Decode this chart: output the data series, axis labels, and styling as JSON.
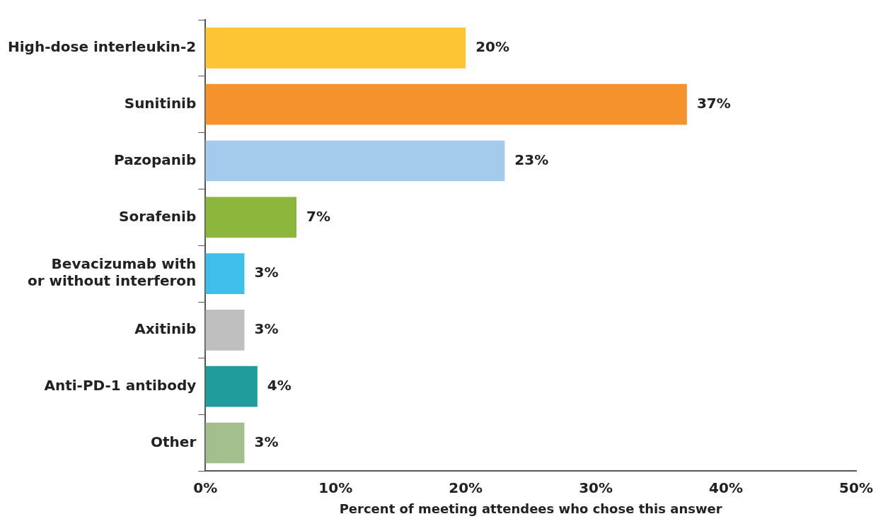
{
  "chart_data": {
    "type": "bar",
    "orientation": "horizontal",
    "xlabel": "Percent of meeting attendees who chose this answer",
    "categories": [
      "High-dose interleukin-2",
      "Sunitinib",
      "Pazopanib",
      "Sorafenib",
      "Bevacizumab with\nor without interferon",
      "Axitinib",
      "Anti-PD-1 antibody",
      "Other"
    ],
    "values": [
      20,
      37,
      23,
      7,
      3,
      3,
      4,
      3
    ],
    "colors": [
      "#fdc533",
      "#f5922b",
      "#a5cbec",
      "#8db63c",
      "#3ec0ea",
      "#bfbfbf",
      "#1f9c9c",
      "#a3bf8d"
    ],
    "value_labels": [
      "20%",
      "37%",
      "23%",
      "7%",
      "3%",
      "3%",
      "4%",
      "3%"
    ],
    "xlim": [
      0,
      50
    ],
    "xticks": [
      {
        "value": 0,
        "label": "0%"
      },
      {
        "value": 10,
        "label": "10%"
      },
      {
        "value": 20,
        "label": "20%"
      },
      {
        "value": 30,
        "label": "30%"
      },
      {
        "value": 40,
        "label": "40%"
      },
      {
        "value": 50,
        "label": "50%"
      }
    ],
    "grid": false,
    "legend": false
  }
}
